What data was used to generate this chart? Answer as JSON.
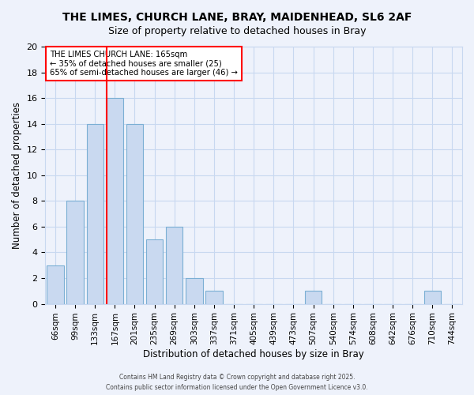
{
  "title": "THE LIMES, CHURCH LANE, BRAY, MAIDENHEAD, SL6 2AF",
  "subtitle": "Size of property relative to detached houses in Bray",
  "xlabel": "Distribution of detached houses by size in Bray",
  "ylabel": "Number of detached properties",
  "bar_labels": [
    "66sqm",
    "99sqm",
    "133sqm",
    "167sqm",
    "201sqm",
    "235sqm",
    "269sqm",
    "303sqm",
    "337sqm",
    "371sqm",
    "405sqm",
    "439sqm",
    "473sqm",
    "507sqm",
    "540sqm",
    "574sqm",
    "608sqm",
    "642sqm",
    "676sqm",
    "710sqm",
    "744sqm"
  ],
  "bar_values": [
    3,
    8,
    14,
    16,
    14,
    5,
    6,
    2,
    1,
    0,
    0,
    0,
    0,
    1,
    0,
    0,
    0,
    0,
    0,
    1,
    0
  ],
  "bar_color": "#c9d9f0",
  "bar_edge_color": "#7bafd4",
  "ylim": [
    0,
    20
  ],
  "yticks": [
    0,
    2,
    4,
    6,
    8,
    10,
    12,
    14,
    16,
    18,
    20
  ],
  "red_line_index": 3,
  "annotation_title": "THE LIMES CHURCH LANE: 165sqm",
  "annotation_line1": "← 35% of detached houses are smaller (25)",
  "annotation_line2": "65% of semi-detached houses are larger (46) →",
  "footer_line1": "Contains HM Land Registry data © Crown copyright and database right 2025.",
  "footer_line2": "Contains public sector information licensed under the Open Government Licence v3.0.",
  "background_color": "#eef2fb",
  "grid_color": "#c8d8f0"
}
